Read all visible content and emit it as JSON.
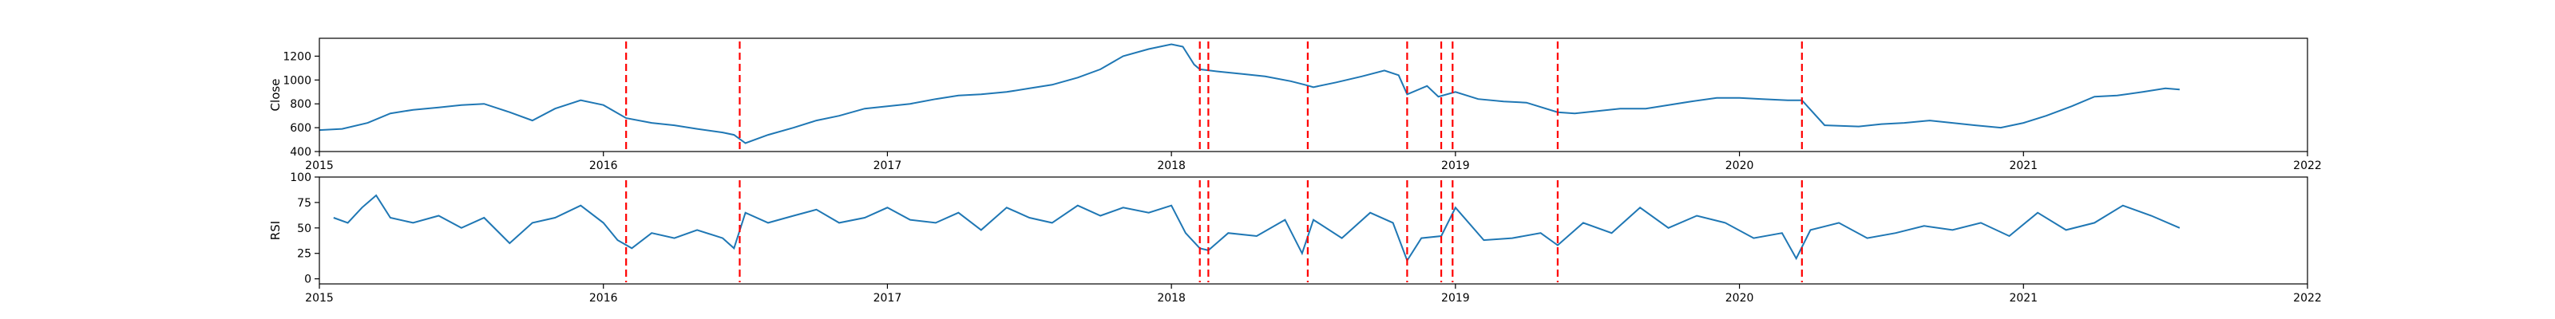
{
  "chart_data": [
    {
      "type": "line",
      "ylabel": "Close",
      "xlim": [
        2015,
        2022
      ],
      "ylim": [
        400,
        1350
      ],
      "x_ticks": [
        "2015",
        "2016",
        "2017",
        "2018",
        "2019",
        "2020",
        "2021",
        "2022"
      ],
      "y_ticks": [
        "400",
        "600",
        "800",
        "1000",
        "1200"
      ],
      "series_color": "#1f77b4",
      "series": [
        {
          "x": [
            2015.0,
            2015.08,
            2015.17,
            2015.25,
            2015.33,
            2015.42,
            2015.5,
            2015.58,
            2015.67,
            2015.75,
            2015.83,
            2015.92,
            2016.0,
            2016.08,
            2016.17,
            2016.25,
            2016.33,
            2016.42,
            2016.46,
            2016.5,
            2016.58,
            2016.67,
            2016.75,
            2016.83,
            2016.92,
            2017.0,
            2017.08,
            2017.17,
            2017.25,
            2017.33,
            2017.42,
            2017.5,
            2017.58,
            2017.67,
            2017.75,
            2017.83,
            2017.92,
            2018.0,
            2018.04,
            2018.08,
            2018.1,
            2018.17,
            2018.25,
            2018.33,
            2018.42,
            2018.47,
            2018.5,
            2018.58,
            2018.67,
            2018.75,
            2018.8,
            2018.83,
            2018.9,
            2018.94,
            2019.0,
            2019.08,
            2019.17,
            2019.25,
            2019.36,
            2019.42,
            2019.5,
            2019.58,
            2019.67,
            2019.75,
            2019.83,
            2019.92,
            2020.0,
            2020.08,
            2020.17,
            2020.22,
            2020.3,
            2020.42,
            2020.5,
            2020.58,
            2020.67,
            2020.75,
            2020.83,
            2020.92,
            2021.0,
            2021.08,
            2021.17,
            2021.25,
            2021.33,
            2021.42,
            2021.5,
            2021.55
          ],
          "values": [
            580,
            590,
            640,
            720,
            750,
            770,
            790,
            800,
            730,
            660,
            760,
            830,
            790,
            680,
            640,
            620,
            590,
            560,
            540,
            470,
            540,
            600,
            660,
            700,
            760,
            780,
            800,
            840,
            870,
            880,
            900,
            930,
            960,
            1020,
            1090,
            1200,
            1260,
            1300,
            1280,
            1130,
            1090,
            1070,
            1050,
            1030,
            990,
            960,
            940,
            980,
            1030,
            1080,
            1040,
            880,
            950,
            860,
            900,
            840,
            820,
            810,
            730,
            720,
            740,
            760,
            760,
            790,
            820,
            850,
            850,
            840,
            830,
            830,
            620,
            610,
            630,
            640,
            660,
            640,
            620,
            600,
            640,
            700,
            780,
            860,
            870,
            900,
            930,
            920
          ]
        }
      ],
      "event_lines_x": [
        2016.08,
        2016.48,
        2018.1,
        2018.13,
        2018.48,
        2018.83,
        2018.95,
        2018.99,
        2019.36,
        2020.22
      ],
      "event_line_color": "#ff0000"
    },
    {
      "type": "line",
      "ylabel": "RSI",
      "xlim": [
        2015,
        2022
      ],
      "ylim": [
        -5,
        100
      ],
      "x_ticks": [
        "2015",
        "2016",
        "2017",
        "2018",
        "2019",
        "2020",
        "2021",
        "2022"
      ],
      "y_ticks": [
        "0",
        "25",
        "50",
        "75",
        "100"
      ],
      "series_color": "#1f77b4",
      "series": [
        {
          "x": [
            2015.05,
            2015.1,
            2015.15,
            2015.2,
            2015.25,
            2015.33,
            2015.42,
            2015.5,
            2015.58,
            2015.67,
            2015.75,
            2015.83,
            2015.92,
            2016.0,
            2016.05,
            2016.1,
            2016.17,
            2016.25,
            2016.33,
            2016.42,
            2016.46,
            2016.5,
            2016.58,
            2016.67,
            2016.75,
            2016.83,
            2016.92,
            2017.0,
            2017.08,
            2017.17,
            2017.25,
            2017.33,
            2017.42,
            2017.5,
            2017.58,
            2017.67,
            2017.75,
            2017.83,
            2017.92,
            2018.0,
            2018.05,
            2018.1,
            2018.13,
            2018.2,
            2018.3,
            2018.4,
            2018.46,
            2018.5,
            2018.6,
            2018.7,
            2018.78,
            2018.83,
            2018.88,
            2018.95,
            2019.0,
            2019.1,
            2019.2,
            2019.3,
            2019.36,
            2019.45,
            2019.55,
            2019.65,
            2019.75,
            2019.85,
            2019.95,
            2020.05,
            2020.15,
            2020.2,
            2020.25,
            2020.35,
            2020.45,
            2020.55,
            2020.65,
            2020.75,
            2020.85,
            2020.95,
            2021.05,
            2021.15,
            2021.25,
            2021.35,
            2021.45,
            2021.55
          ],
          "values": [
            60,
            55,
            70,
            82,
            60,
            55,
            62,
            50,
            60,
            35,
            55,
            60,
            72,
            55,
            38,
            30,
            45,
            40,
            48,
            40,
            30,
            65,
            55,
            62,
            68,
            55,
            60,
            70,
            58,
            55,
            65,
            48,
            70,
            60,
            55,
            72,
            62,
            70,
            65,
            72,
            45,
            30,
            28,
            45,
            42,
            58,
            25,
            58,
            40,
            65,
            55,
            18,
            40,
            42,
            70,
            38,
            40,
            45,
            33,
            55,
            45,
            70,
            50,
            62,
            55,
            40,
            45,
            20,
            48,
            55,
            40,
            45,
            52,
            48,
            55,
            42,
            65,
            48,
            55,
            72,
            62,
            50
          ]
        }
      ],
      "event_lines_x": [
        2016.08,
        2016.48,
        2018.1,
        2018.13,
        2018.48,
        2018.83,
        2018.95,
        2018.99,
        2019.36,
        2020.22
      ],
      "event_line_color": "#ff0000"
    }
  ]
}
